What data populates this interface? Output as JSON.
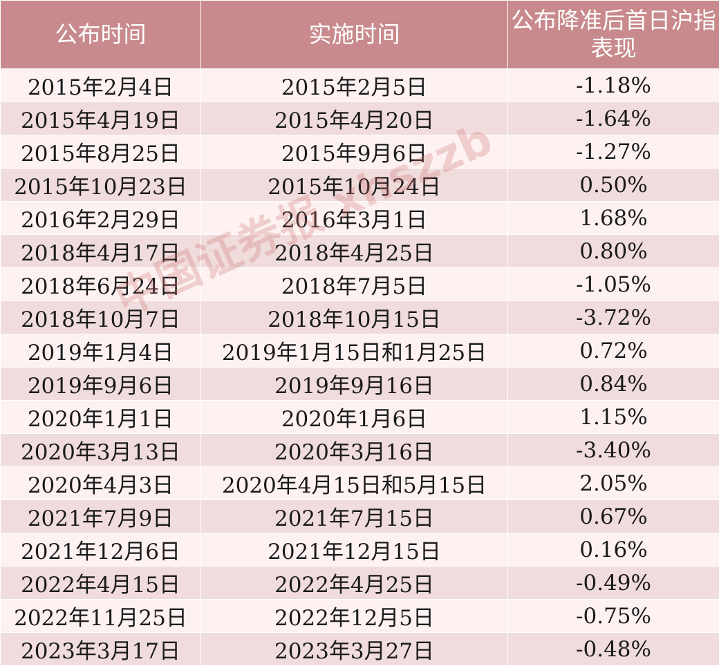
{
  "header": {
    "col1": "公布时间",
    "col2": "实施时间",
    "col3": "公布降准后首日沪指表现"
  },
  "rows": [
    {
      "announce": "2015年2月4日",
      "implement": "2015年2月5日",
      "change": "-1.18%"
    },
    {
      "announce": "2015年4月19日",
      "implement": "2015年4月20日",
      "change": "-1.64%"
    },
    {
      "announce": "2015年8月25日",
      "implement": "2015年9月6日",
      "change": "-1.27%"
    },
    {
      "announce": "2015年10月23日",
      "implement": "2015年10月24日",
      "change": "0.50%"
    },
    {
      "announce": "2016年2月29日",
      "implement": "2016年3月1日",
      "change": "1.68%"
    },
    {
      "announce": "2018年4月17日",
      "implement": "2018年4月25日",
      "change": "0.80%"
    },
    {
      "announce": "2018年6月24日",
      "implement": "2018年7月5日",
      "change": "-1.05%"
    },
    {
      "announce": "2018年10月7日",
      "implement": "2018年10月15日",
      "change": "-3.72%"
    },
    {
      "announce": "2019年1月4日",
      "implement": "2019年1月15日和1月25日",
      "change": "0.72%"
    },
    {
      "announce": "2019年9月6日",
      "implement": "2019年9月16日",
      "change": "0.84%"
    },
    {
      "announce": "2020年1月1日",
      "implement": "2020年1月6日",
      "change": "1.15%"
    },
    {
      "announce": "2020年3月13日",
      "implement": "2020年3月16日",
      "change": "-3.40%"
    },
    {
      "announce": "2020年4月3日",
      "implement": "2020年4月15日和5月15日",
      "change": "2.05%"
    },
    {
      "announce": "2021年7月9日",
      "implement": "2021年7月15日",
      "change": "0.67%"
    },
    {
      "announce": "2021年12月6日",
      "implement": "2021年12月15日",
      "change": "0.16%"
    },
    {
      "announce": "2022年4月15日",
      "implement": "2022年4月25日",
      "change": "-0.49%"
    },
    {
      "announce": "2022年11月25日",
      "implement": "2022年12月5日",
      "change": "-0.75%"
    },
    {
      "announce": "2023年3月17日",
      "implement": "2023年3月27日",
      "change": "-0.48%"
    }
  ],
  "watermark": "中国证券报 xhszzb",
  "colors": {
    "header_bg": "#c88a8c",
    "row_light": "#fdf1f1",
    "row_dark": "#f0dcdc"
  }
}
